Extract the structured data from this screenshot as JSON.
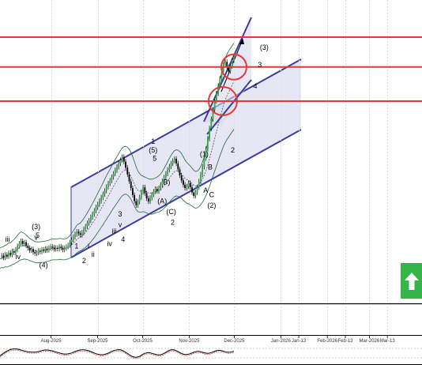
{
  "chart_data": {
    "type": "line",
    "xlabel": "",
    "ylabel": "",
    "x_ticks": [
      "Aug-2025",
      "Sep-2025",
      "Oct-2025",
      "Nov-2025",
      "Dec-2025",
      "Jan-2026",
      "Jan-13",
      "Feb-2026",
      "Feb-13",
      "Mar-2026",
      "Mar-13"
    ],
    "wave_labels": [
      {
        "text": "(3)",
        "date": "2025-07-22",
        "y": 17
      },
      {
        "text": "5",
        "date": "2025-07-23",
        "y": 15
      },
      {
        "text": "iii",
        "date": "2025-07-03",
        "y": 14
      },
      {
        "text": "v",
        "date": "2025-07-22",
        "y": 14.5
      },
      {
        "text": "iv",
        "date": "2025-07-10",
        "y": 10
      },
      {
        "text": "(4)",
        "date": "2025-07-27",
        "y": 8
      },
      {
        "text": "1",
        "date": "2025-08-18",
        "y": 12.5
      },
      {
        "text": "i",
        "date": "2025-08-26",
        "y": 12.5
      },
      {
        "text": "2",
        "date": "2025-08-23",
        "y": 9
      },
      {
        "text": "ii",
        "date": "2025-08-29",
        "y": 10.5
      },
      {
        "text": "iii",
        "date": "2025-09-12",
        "y": 16
      },
      {
        "text": "iv",
        "date": "2025-09-09",
        "y": 13
      },
      {
        "text": "v",
        "date": "2025-09-16",
        "y": 17.5
      },
      {
        "text": "3",
        "date": "2025-09-16",
        "y": 20
      },
      {
        "text": "4",
        "date": "2025-09-18",
        "y": 14
      },
      {
        "text": "1",
        "date": "2025-10-08",
        "y": 37
      },
      {
        "text": "(5)",
        "date": "2025-10-08",
        "y": 35
      },
      {
        "text": "5",
        "date": "2025-10-09",
        "y": 33
      },
      {
        "text": "B)",
        "date": "2025-10-17",
        "y": 27.5
      },
      {
        "text": "(A)",
        "date": "2025-10-14",
        "y": 23
      },
      {
        "text": "(C)",
        "date": "2025-10-20",
        "y": 20.5
      },
      {
        "text": "2",
        "date": "2025-10-21",
        "y": 18
      },
      {
        "text": "(1)",
        "date": "2025-11-11",
        "y": 34
      },
      {
        "text": "B",
        "date": "2025-11-15",
        "y": 31
      },
      {
        "text": "A",
        "date": "2025-11-12",
        "y": 25.5
      },
      {
        "text": "C",
        "date": "2025-11-16",
        "y": 24.5
      },
      {
        "text": "(2)",
        "date": "2025-11-16",
        "y": 22
      },
      {
        "text": "2",
        "date": "2025-11-30",
        "y": 35
      },
      {
        "text": "(3)",
        "date": "2025-12-21",
        "y": 59
      },
      {
        "text": "3",
        "date": "2025-12-18",
        "y": 55
      },
      {
        "text": "4",
        "date": "2025-12-15",
        "y": 50
      }
    ],
    "horizontal_levels": [
      62,
      55,
      47
    ],
    "series": [
      {
        "values": [
          10.5,
          10.8,
          10.3,
          11.0,
          10.6,
          11.4,
          11.0,
          11.8,
          11.5,
          12.2,
          13.0,
          13.6,
          14.2,
          13.5,
          13.9,
          13.1,
          12.6,
          12.0,
          12.3,
          11.6,
          11.3,
          11.5,
          11.9,
          11.7,
          12.2,
          12.0,
          12.4,
          12.1,
          12.6,
          12.9,
          12.7,
          12.3,
          12.6,
          12.4,
          12.9,
          12.6,
          12.2,
          12.5,
          12.8,
          13.2,
          13.9,
          14.5,
          15.2,
          15.8,
          16.4,
          16.0,
          15.6,
          16.2,
          17.0,
          17.6,
          18.4,
          19.0,
          19.8,
          20.5,
          21.3,
          22.1,
          22.8,
          23.6,
          24.4,
          25.2,
          26.0,
          26.9,
          27.7,
          28.4,
          29.2,
          30.0,
          30.8,
          31.6,
          32.4,
          33.2,
          33.9,
          32.8,
          31.4,
          29.8,
          28.2,
          26.6,
          25.0,
          23.6,
          22.6,
          23.4,
          24.5,
          25.7,
          26.8,
          25.4,
          24.2,
          23.5,
          24.3,
          25.1,
          25.8,
          26.4,
          25.9,
          26.6,
          27.4,
          28.2,
          29.1,
          30.0,
          30.9,
          31.7,
          32.4,
          33.0,
          33.5,
          32.4,
          31.0,
          29.6,
          28.4,
          27.4,
          26.6,
          27.0,
          27.8,
          26.8,
          25.6,
          24.8,
          25.6,
          26.8,
          28.2,
          29.8,
          31.6,
          33.6,
          35.8,
          38.2,
          40.6,
          42.8,
          45.0,
          47.0,
          48.8,
          50.6,
          52.3,
          53.8,
          55.4,
          56.2,
          55.0,
          54.0,
          55.2,
          56.6,
          57.4
        ]
      },
      {
        "values": [
          10.0,
          10.3,
          10.2,
          10.6,
          10.5,
          10.8,
          10.9,
          11.3,
          11.5,
          11.9,
          12.3,
          12.7,
          13.0,
          13.1,
          13.2,
          13.0,
          12.8,
          12.5,
          12.4,
          12.1,
          11.9,
          11.8,
          11.8,
          11.8,
          11.9,
          11.9,
          12.0,
          12.1,
          12.2,
          12.4,
          12.5,
          12.5,
          12.5,
          12.5,
          12.6,
          12.6,
          12.5,
          12.5,
          12.6,
          12.7,
          13.0,
          13.3,
          13.7,
          14.1,
          14.6,
          14.9,
          15.1,
          15.4,
          15.8,
          16.2,
          16.7,
          17.2,
          17.8,
          18.4,
          19.0,
          19.7,
          20.4,
          21.1,
          21.8,
          22.5,
          23.3,
          24.0,
          24.8,
          25.5,
          26.3,
          27.0,
          27.7,
          28.4,
          29.1,
          29.8,
          30.4,
          30.7,
          30.8,
          30.6,
          30.1,
          29.4,
          28.5,
          27.5,
          26.6,
          26.1,
          25.9,
          25.9,
          26.0,
          25.9,
          25.7,
          25.5,
          25.4,
          25.4,
          25.5,
          25.7,
          25.8,
          26.0,
          26.3,
          26.7,
          27.2,
          27.7,
          28.3,
          28.9,
          29.5,
          30.0,
          30.5,
          30.7,
          30.6,
          30.3,
          29.9,
          29.4,
          28.9,
          28.6,
          28.4,
          28.1,
          27.7,
          27.3,
          27.1,
          27.2,
          27.5,
          28.0,
          28.7,
          29.6,
          30.7,
          32.0,
          33.5,
          35.0,
          36.6,
          38.2,
          39.8,
          41.4,
          43.0,
          44.5,
          46.0,
          47.3,
          48.3,
          49.1,
          49.9,
          50.8,
          51.6
        ]
      },
      {
        "values": [
          12.6,
          12.8,
          12.9,
          13.2,
          13.4,
          13.7,
          13.8,
          14.2,
          14.6,
          15.0,
          15.6,
          16.0,
          16.4,
          16.2,
          16.0,
          15.6,
          15.2,
          14.8,
          14.6,
          14.3,
          14.1,
          14.0,
          14.0,
          14.0,
          14.1,
          14.1,
          14.2,
          14.3,
          14.4,
          14.6,
          14.7,
          14.7,
          14.7,
          14.7,
          14.8,
          14.8,
          14.7,
          14.7,
          14.8,
          15.0,
          15.5,
          16.0,
          16.6,
          17.2,
          17.9,
          18.2,
          18.4,
          18.9,
          19.5,
          20.1,
          20.8,
          21.5,
          22.3,
          23.0,
          23.8,
          24.6,
          25.4,
          26.2,
          27.0,
          27.8,
          28.7,
          29.5,
          30.3,
          31.0,
          31.8,
          32.6,
          33.3,
          34.0,
          34.7,
          35.4,
          36.0,
          36.3,
          36.4,
          36.2,
          35.7,
          35.0,
          34.0,
          32.8,
          31.6,
          30.6,
          30.0,
          29.6,
          29.4,
          29.2,
          29.0,
          28.8,
          28.7,
          28.7,
          28.8,
          29.0,
          29.2,
          29.5,
          29.9,
          30.5,
          31.2,
          32.0,
          32.8,
          33.6,
          34.3,
          34.9,
          35.4,
          35.6,
          35.5,
          35.2,
          34.7,
          34.0,
          33.2,
          32.6,
          32.2,
          31.8,
          31.3,
          30.8,
          30.5,
          30.6,
          31.0,
          31.7,
          32.7,
          34.0,
          35.6,
          37.4,
          39.4,
          41.5,
          43.7,
          45.9,
          48.0,
          50.0,
          52.0,
          53.8,
          55.6,
          57.0,
          58.0,
          58.8,
          59.4,
          60.0,
          60.6
        ]
      },
      {
        "values": [
          7.8,
          8.0,
          7.9,
          8.2,
          8.1,
          8.3,
          8.4,
          8.7,
          8.8,
          9.1,
          9.3,
          9.6,
          9.8,
          9.9,
          10.0,
          9.9,
          9.8,
          9.6,
          9.5,
          9.3,
          9.2,
          9.1,
          9.1,
          9.1,
          9.2,
          9.2,
          9.3,
          9.4,
          9.5,
          9.7,
          9.8,
          9.8,
          9.8,
          9.8,
          9.9,
          9.9,
          9.8,
          9.8,
          9.9,
          10.0,
          10.2,
          10.4,
          10.7,
          11.0,
          11.4,
          11.7,
          11.9,
          12.1,
          12.4,
          12.7,
          13.1,
          13.5,
          14.0,
          14.5,
          15.0,
          15.6,
          16.2,
          16.8,
          17.4,
          18.0,
          18.7,
          19.3,
          20.0,
          20.6,
          21.3,
          21.9,
          22.5,
          23.1,
          23.7,
          24.3,
          24.8,
          25.1,
          25.2,
          25.0,
          24.6,
          24.0,
          23.2,
          22.4,
          21.6,
          21.1,
          21.0,
          21.0,
          21.1,
          21.0,
          20.8,
          20.6,
          20.5,
          20.5,
          20.6,
          20.8,
          20.9,
          21.0,
          21.2,
          21.5,
          21.9,
          22.3,
          22.8,
          23.3,
          23.8,
          24.2,
          24.6,
          24.8,
          24.7,
          24.5,
          24.2,
          23.8,
          23.4,
          23.1,
          22.9,
          22.7,
          22.4,
          22.1,
          21.9,
          22.0,
          22.3,
          22.7,
          23.3,
          24.0,
          24.9,
          25.9,
          27.0,
          28.2,
          29.4,
          30.6,
          31.8,
          33.0,
          34.2,
          35.3,
          36.4,
          37.3,
          38.0,
          38.6,
          39.2,
          39.8,
          40.4
        ]
      },
      {
        "values": [
          18.5,
          19.2,
          19.9,
          20.6,
          21.2,
          21.7,
          22.1,
          22.3,
          22.4,
          22.4,
          22.3,
          22.1,
          21.8,
          21.5,
          21.2,
          21.0,
          20.8,
          20.7,
          20.6,
          20.6,
          20.6,
          20.7,
          20.9,
          21.2,
          21.5,
          21.7,
          21.8,
          21.8,
          21.7,
          21.5,
          21.3,
          21.0,
          20.7,
          20.4,
          20.1,
          19.8,
          19.6,
          19.5,
          19.5,
          19.6,
          19.8,
          20.1,
          20.5,
          20.9,
          21.3,
          21.6,
          21.8,
          21.9,
          21.9,
          21.8,
          21.6,
          21.3,
          20.9,
          20.5,
          20.1,
          19.7,
          19.4,
          19.2,
          19.1,
          19.1,
          19.3,
          19.6,
          20.0,
          20.5,
          21.0,
          21.4,
          21.7,
          21.9,
          22.0,
          21.9,
          21.6,
          21.1,
          20.5,
          19.8,
          19.1,
          18.5,
          18.0,
          17.7,
          17.6,
          17.8,
          18.2,
          18.8,
          19.4,
          19.9,
          20.2,
          20.3,
          20.2,
          19.9,
          19.6,
          19.3,
          19.1,
          19.0,
          19.1,
          19.4,
          19.9,
          20.5,
          21.1,
          21.6,
          21.9,
          22.0,
          21.8,
          21.4,
          20.9,
          20.3,
          19.8,
          19.4,
          19.2,
          19.2,
          19.4,
          19.7,
          20.1,
          20.5,
          20.8,
          21.0,
          21.0,
          20.8,
          20.5,
          20.2,
          20.0,
          19.9,
          20.0,
          20.3,
          20.7,
          21.1,
          21.4,
          21.6,
          21.6,
          21.4,
          21.1,
          20.8,
          20.6,
          20.5,
          20.6,
          20.8,
          21.1
        ]
      }
    ]
  }
}
